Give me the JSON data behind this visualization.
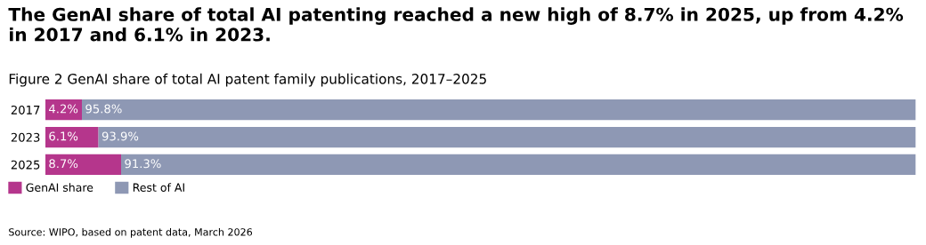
{
  "chart_data": {
    "type": "bar",
    "orientation": "horizontal",
    "stacked": true,
    "title": "The GenAI share of total AI patenting reached a new high of 8.7% in 2025, up from 4.2% in 2017 and 6.1% in 2023.",
    "subtitle": "Figure 2 GenAI share of total AI patent family publications, 2017–2025",
    "categories": [
      "2017",
      "2023",
      "2025"
    ],
    "series": [
      {
        "name": "GenAI share",
        "color": "#b5368c",
        "values": [
          4.2,
          6.1,
          8.7
        ],
        "value_labels": [
          "4.2%",
          "6.1%",
          "8.7%"
        ]
      },
      {
        "name": "Rest of AI",
        "color": "#8e98b4",
        "values": [
          95.8,
          93.9,
          91.3
        ],
        "value_labels": [
          "95.8%",
          "93.9%",
          "91.3%"
        ]
      }
    ],
    "legend": "bottom left",
    "grid": false,
    "annotations": [
      "Source: WIPO, based on patent data, March 2026"
    ]
  }
}
